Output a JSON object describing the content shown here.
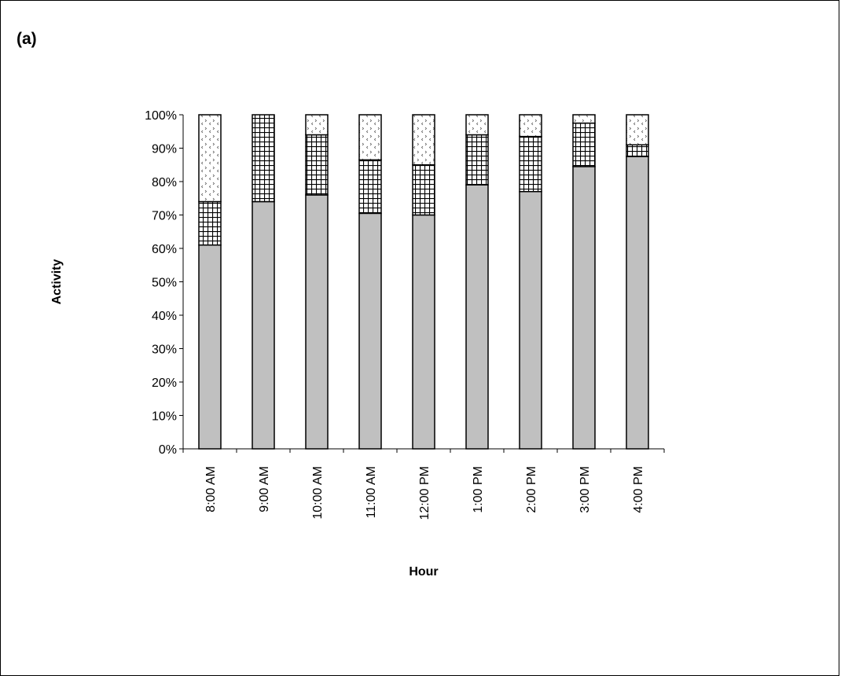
{
  "panel_label": "(a)",
  "chart_data": {
    "type": "bar",
    "stacked": true,
    "percent_stacked": true,
    "title": "",
    "xlabel": "Hour",
    "ylabel": "Activity",
    "categories": [
      "8:00 AM",
      "9:00 AM",
      "10:00 AM",
      "11:00 AM",
      "12:00 PM",
      "1:00 PM",
      "2:00 PM",
      "3:00 PM",
      "4:00 PM"
    ],
    "y_ticks": [
      "0%",
      "10%",
      "20%",
      "30%",
      "40%",
      "50%",
      "60%",
      "70%",
      "80%",
      "90%",
      "100%"
    ],
    "ylim": [
      0,
      100
    ],
    "grid": false,
    "legend": "none",
    "series": [
      {
        "values": [
          61,
          74,
          76,
          70.5,
          70,
          79,
          77,
          84.5,
          87.5
        ],
        "fill": "solid-gray",
        "color": "#c0c0c0"
      },
      {
        "values": [
          13,
          26,
          18,
          16,
          15,
          15,
          16.5,
          13,
          3.5
        ],
        "fill": "crosshatch",
        "color": "#ffffff"
      },
      {
        "values": [
          26,
          0,
          6,
          13.5,
          15,
          6,
          6.5,
          2.5,
          9
        ],
        "fill": "dotted",
        "color": "#ffffff"
      }
    ]
  }
}
